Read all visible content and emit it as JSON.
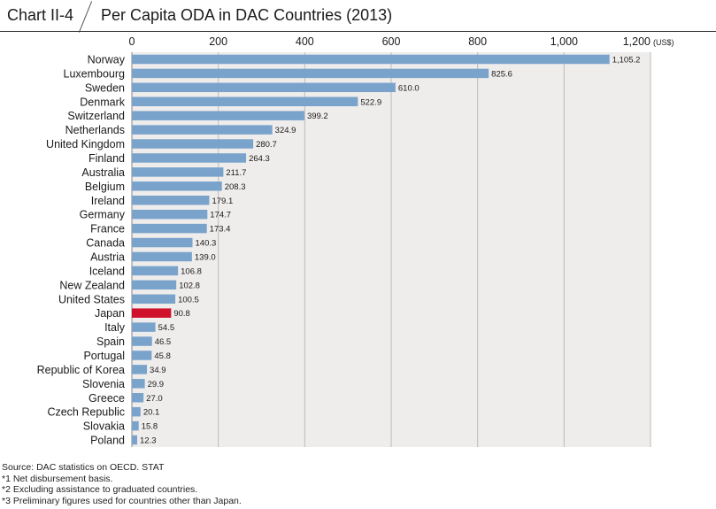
{
  "header": {
    "chart_label": "Chart II-4",
    "title": "Per Capita ODA in DAC Countries (2013)"
  },
  "chart_data": {
    "type": "bar",
    "orientation": "horizontal",
    "title": "Per Capita ODA in DAC Countries (2013)",
    "unit_label": "(US$)",
    "xlim": [
      0,
      1200
    ],
    "ticks": [
      0,
      200,
      400,
      600,
      800,
      1000,
      1200
    ],
    "tick_labels": [
      "0",
      "200",
      "400",
      "600",
      "800",
      "1,000",
      "1,200"
    ],
    "grid": true,
    "categories": [
      "Norway",
      "Luxembourg",
      "Sweden",
      "Denmark",
      "Switzerland",
      "Netherlands",
      "United Kingdom",
      "Finland",
      "Australia",
      "Belgium",
      "Ireland",
      "Germany",
      "France",
      "Canada",
      "Austria",
      "Iceland",
      "New Zealand",
      "United States",
      "Japan",
      "Italy",
      "Spain",
      "Portugal",
      "Republic of Korea",
      "Slovenia",
      "Greece",
      "Czech Republic",
      "Slovakia",
      "Poland"
    ],
    "values": [
      1105.2,
      825.6,
      610.0,
      522.9,
      399.2,
      324.9,
      280.7,
      264.3,
      211.7,
      208.3,
      179.1,
      174.7,
      173.4,
      140.3,
      139.0,
      106.8,
      102.8,
      100.5,
      90.8,
      54.5,
      46.5,
      45.8,
      34.9,
      29.9,
      27.0,
      20.1,
      15.8,
      12.3
    ],
    "value_labels": [
      "1,105.2",
      "825.6",
      "610.0",
      "522.9",
      "399.2",
      "324.9",
      "280.7",
      "264.3",
      "211.7",
      "208.3",
      "179.1",
      "174.7",
      "173.4",
      "140.3",
      "139.0",
      "106.8",
      "102.8",
      "100.5",
      "90.8",
      "54.5",
      "46.5",
      "45.8",
      "34.9",
      "29.9",
      "27.0",
      "20.1",
      "15.8",
      "12.3"
    ],
    "highlight": "Japan",
    "colors": {
      "bar": "#7aa3cc",
      "highlight": "#d0112b",
      "plot_bg": "#efedeb",
      "grid": "#bdbab6"
    }
  },
  "notes": {
    "source": "Source: DAC statistics on OECD. STAT",
    "note1": "*1  Net disbursement basis.",
    "note2": "*2  Excluding assistance to graduated countries.",
    "note3": "*3  Preliminary figures used for countries other than Japan."
  }
}
